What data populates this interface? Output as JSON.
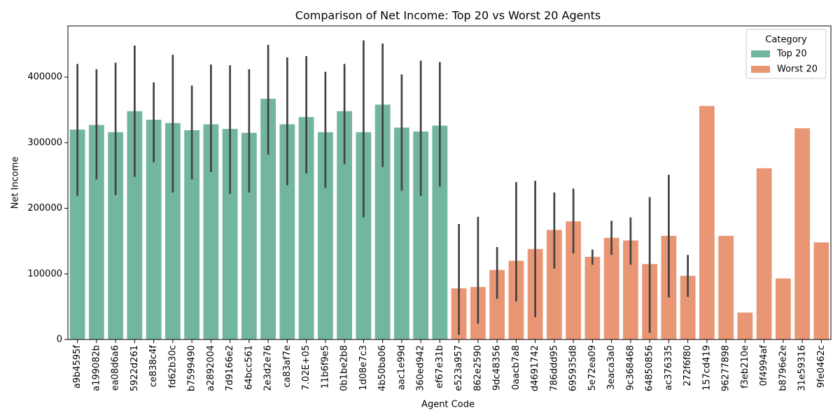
{
  "chart_data": {
    "type": "bar",
    "title": "Comparison of Net Income: Top 20 vs Worst 20 Agents",
    "x_label": "Agent Code",
    "y_label": "Net Income",
    "legend_title": "Category",
    "legend_position": "upper right",
    "categories": [
      "a9b4595f",
      "a199082b",
      "ea08d6a6",
      "5922d261",
      "ce838c4f",
      "fd62b30c",
      "b7599490",
      "a2892004",
      "7d9166e2",
      "64bcc561",
      "2e3d2e76",
      "ca83af7e",
      "7.02E+05",
      "11b6f9e5",
      "0b1be2b8",
      "1d08e7c3",
      "4b50ba06",
      "aac1e99d",
      "360ed942",
      "ef67e31b",
      "e523a957",
      "862e2590",
      "9dc48356",
      "0aacb7a8",
      "d4691742",
      "786ddd95",
      "695935d8",
      "5e72ea09",
      "3eaca3a0",
      "9c368468",
      "64850856",
      "ac376335",
      "272f6f80",
      "157cd419",
      "96277898",
      "f3eb210e",
      "0f4994af",
      "b8796e2e",
      "31e59316",
      "9fe0462c"
    ],
    "series": [
      {
        "name": "Top 20",
        "color": "#72b6a1",
        "values": [
          320000,
          327000,
          316000,
          348000,
          335000,
          330000,
          319000,
          328000,
          321000,
          315000,
          367000,
          328000,
          339000,
          316000,
          348000,
          316000,
          358000,
          323000,
          317000,
          326000,
          null,
          null,
          null,
          null,
          null,
          null,
          null,
          null,
          null,
          null,
          null,
          null,
          null,
          null,
          null,
          null,
          null,
          null,
          null,
          null
        ],
        "ci_low": [
          219000,
          244000,
          220000,
          248000,
          270000,
          224000,
          244000,
          255000,
          222000,
          224000,
          282000,
          235000,
          253000,
          231000,
          267000,
          186000,
          263000,
          227000,
          219000,
          233000,
          null,
          null,
          null,
          null,
          null,
          null,
          null,
          null,
          null,
          null,
          null,
          null,
          null,
          null,
          null,
          null,
          null,
          null,
          null,
          null
        ],
        "ci_high": [
          420000,
          412000,
          422000,
          448000,
          392000,
          434000,
          387000,
          419000,
          418000,
          412000,
          449000,
          430000,
          432000,
          408000,
          420000,
          456000,
          451000,
          404000,
          425000,
          423000,
          null,
          null,
          null,
          null,
          null,
          null,
          null,
          null,
          null,
          null,
          null,
          null,
          null,
          null,
          null,
          null,
          null,
          null,
          null,
          null
        ]
      },
      {
        "name": "Worst 20",
        "color": "#e99675",
        "values": [
          null,
          null,
          null,
          null,
          null,
          null,
          null,
          null,
          null,
          null,
          null,
          null,
          null,
          null,
          null,
          null,
          null,
          null,
          null,
          null,
          78000,
          80000,
          106000,
          120000,
          138000,
          167000,
          180000,
          126000,
          155000,
          151000,
          115000,
          158000,
          97000,
          356000,
          158000,
          41000,
          261000,
          93000,
          322000,
          148000
        ],
        "ci_low": [
          null,
          null,
          null,
          null,
          null,
          null,
          null,
          null,
          null,
          null,
          null,
          null,
          null,
          null,
          null,
          null,
          null,
          null,
          null,
          null,
          7000,
          24000,
          62000,
          58000,
          34000,
          108000,
          131000,
          114000,
          129000,
          114000,
          10000,
          64000,
          65000,
          null,
          null,
          null,
          null,
          null,
          null,
          null
        ],
        "ci_high": [
          null,
          null,
          null,
          null,
          null,
          null,
          null,
          null,
          null,
          null,
          null,
          null,
          null,
          null,
          null,
          null,
          null,
          null,
          null,
          null,
          176000,
          187000,
          141000,
          240000,
          242000,
          224000,
          230000,
          137000,
          181000,
          186000,
          217000,
          251000,
          129000,
          null,
          null,
          null,
          null,
          null,
          null,
          null
        ]
      }
    ],
    "ylim": [
      0,
      478000
    ],
    "yticks": [
      0,
      100000,
      200000,
      300000,
      400000
    ],
    "grid": false
  }
}
